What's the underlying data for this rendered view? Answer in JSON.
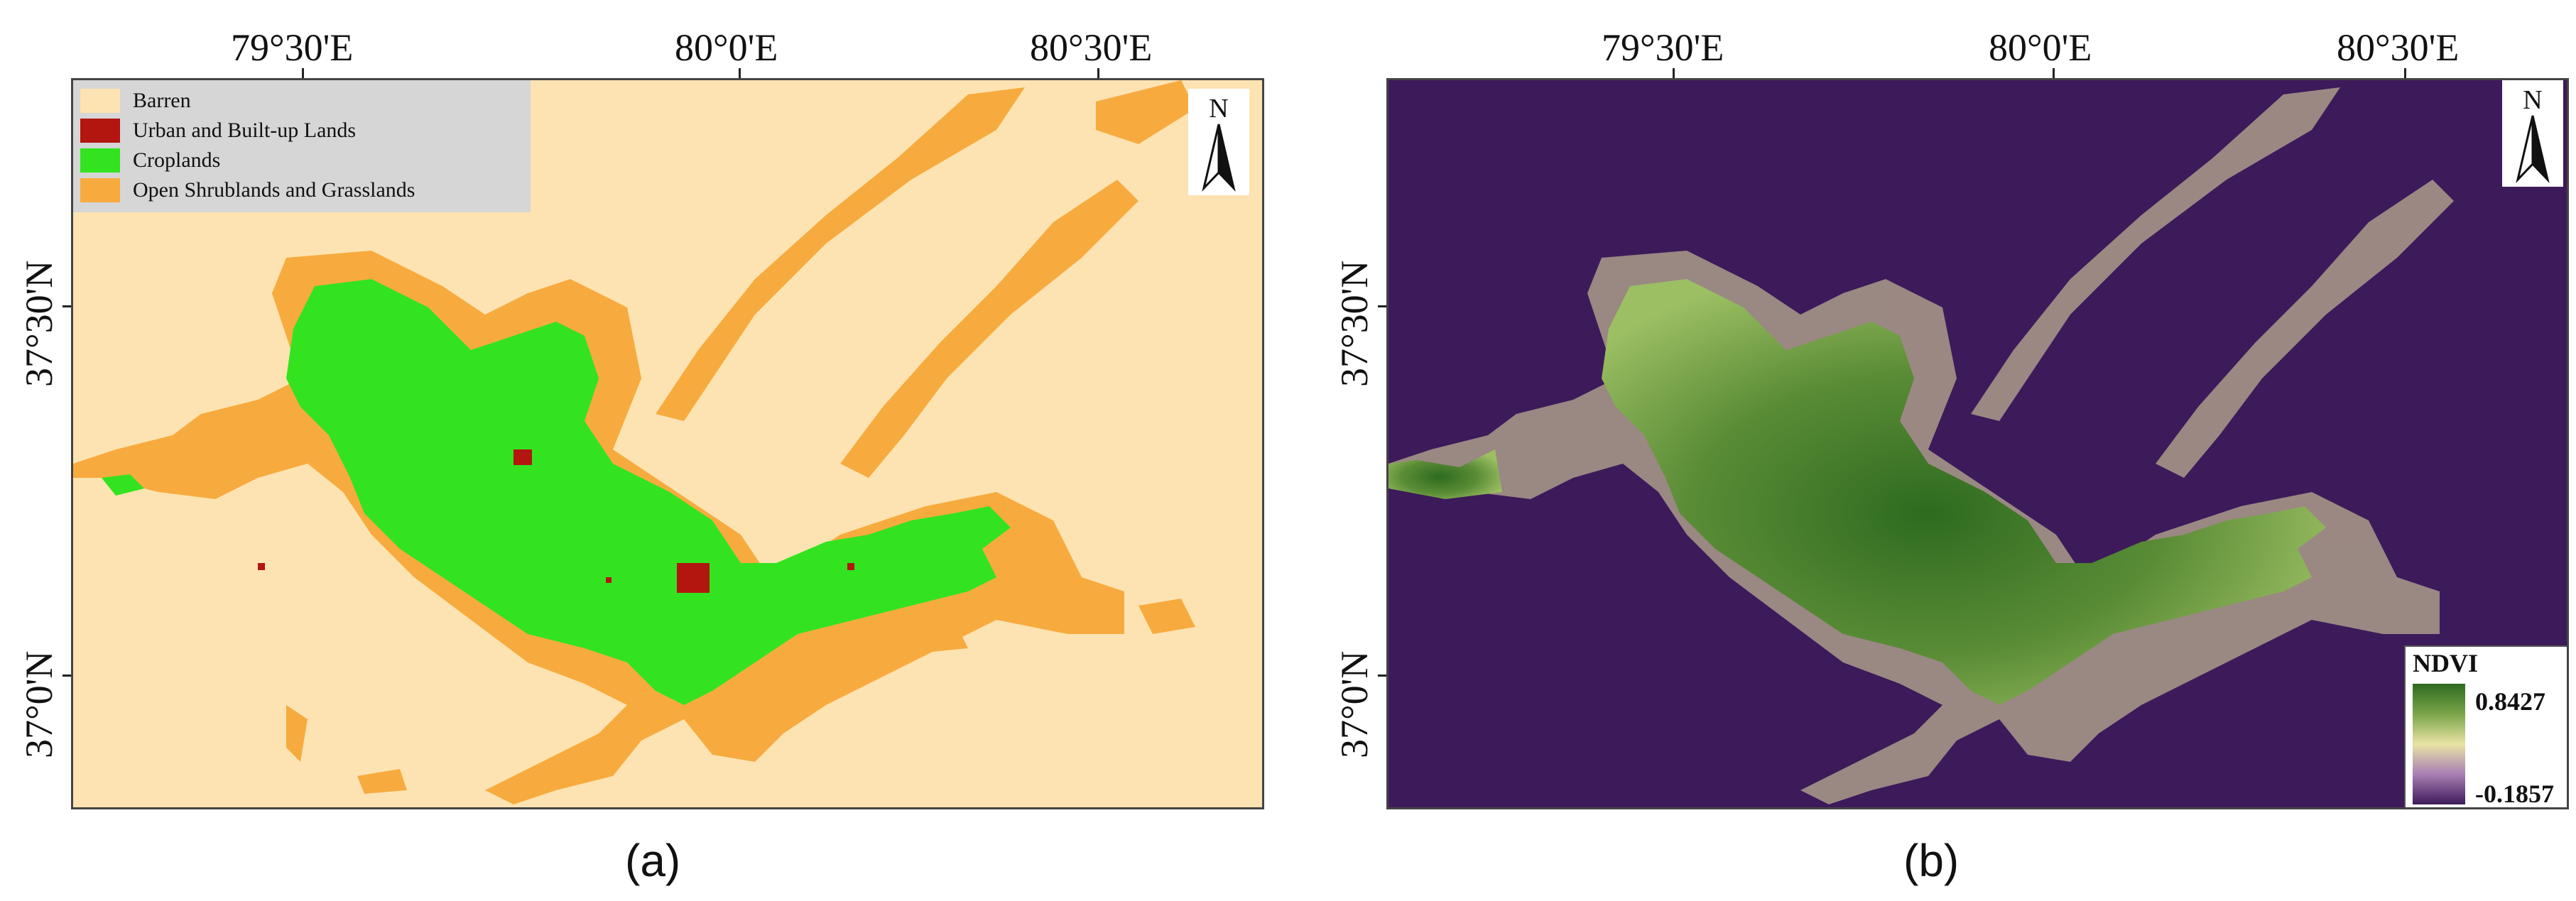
{
  "panel_a": {
    "caption": "(a)",
    "lon_ticks": [
      "79°30'E",
      "80°0'E",
      "80°30'E"
    ],
    "lat_ticks": [
      "37°30'N",
      "37°0'N"
    ],
    "legend": [
      {
        "label": "Barren",
        "color": "#fde3b2"
      },
      {
        "label": "Urban and Built-up Lands",
        "color": "#b3150f"
      },
      {
        "label": "Croplands",
        "color": "#33e31f"
      },
      {
        "label": "Open Shrublands and Grasslands",
        "color": "#f7ab3e"
      }
    ],
    "north_label": "N"
  },
  "panel_b": {
    "caption": "(b)",
    "lon_ticks": [
      "79°30'E",
      "80°0'E",
      "80°30'E"
    ],
    "lat_ticks": [
      "37°30'N",
      "37°0'N"
    ],
    "north_label": "N",
    "colorbar": {
      "title": "NDVI",
      "max": "0.8427",
      "min": "-0.1857"
    }
  },
  "colors": {
    "barren": "#fde3b2",
    "urban": "#b3150f",
    "cropland": "#33e31f",
    "shrubland": "#f7ab3e",
    "ndvi_low": "#3d1a5a",
    "ndvi_mid": "#e8e3a5",
    "ndvi_high": "#2e6b1f"
  }
}
